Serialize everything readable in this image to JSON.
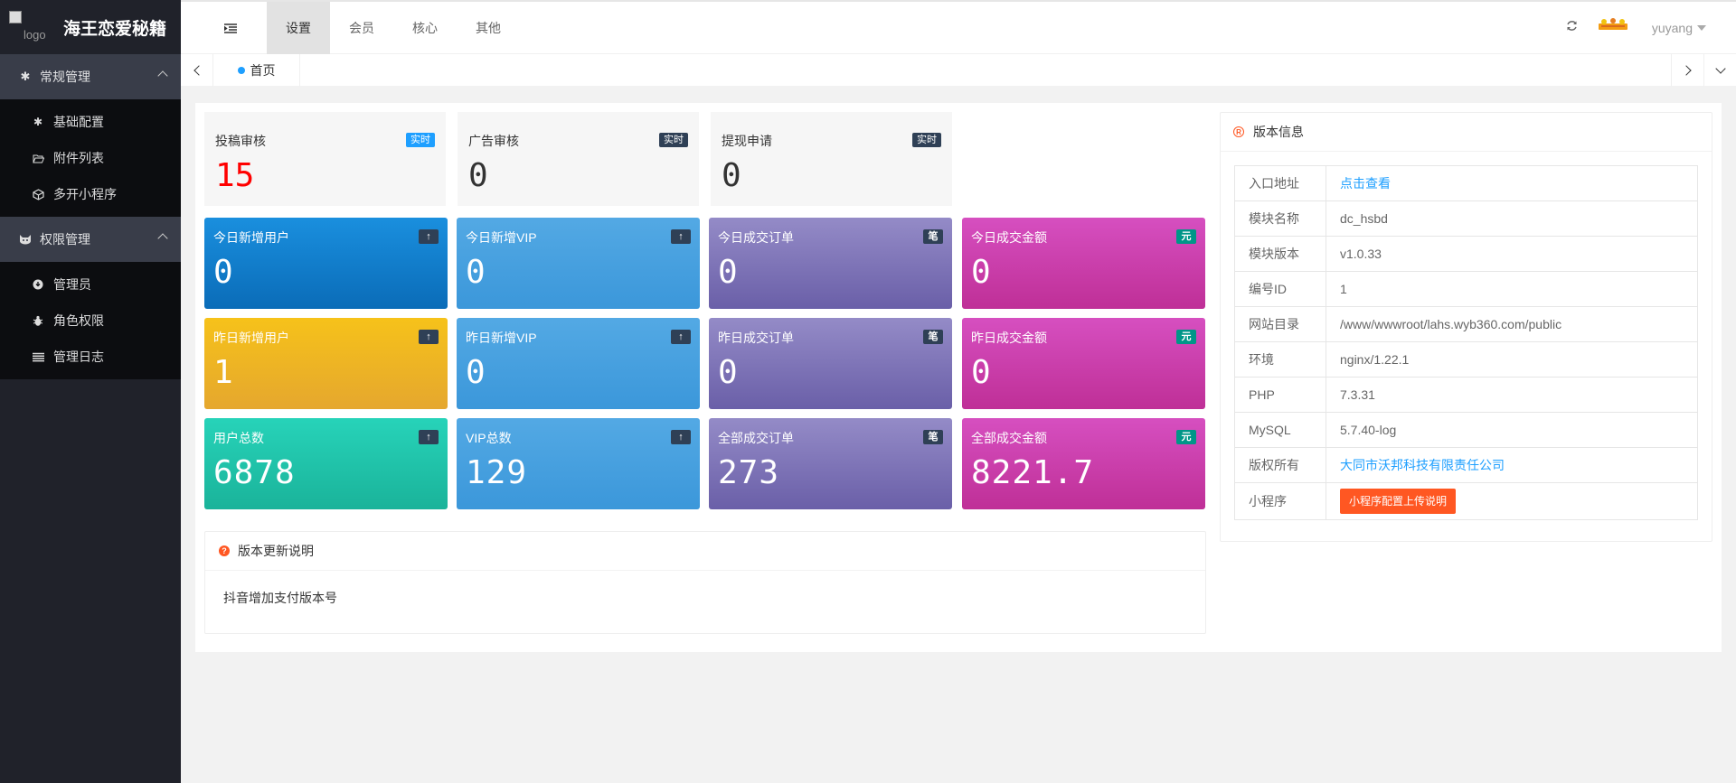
{
  "app": {
    "logo_alt": "logo",
    "title": "海王恋爱秘籍"
  },
  "header": {
    "tabs": [
      {
        "label": "设置",
        "active": true
      },
      {
        "label": "会员",
        "active": false
      },
      {
        "label": "核心",
        "active": false
      },
      {
        "label": "其他",
        "active": false
      }
    ],
    "user": "yuyang"
  },
  "sidebar": {
    "groups": [
      {
        "label": "常规管理",
        "icon": "gear-icon",
        "items": [
          {
            "label": "基础配置",
            "icon": "gear-icon"
          },
          {
            "label": "附件列表",
            "icon": "folder-open-icon"
          },
          {
            "label": "多开小程序",
            "icon": "cube-icon"
          }
        ]
      },
      {
        "label": "权限管理",
        "icon": "cat-icon",
        "items": [
          {
            "label": "管理员",
            "icon": "download-circle-icon"
          },
          {
            "label": "角色权限",
            "icon": "bug-icon"
          },
          {
            "label": "管理日志",
            "icon": "list-icon"
          }
        ]
      }
    ]
  },
  "page_tabs": {
    "home": "首页"
  },
  "review_stats": [
    {
      "label": "投稿审核",
      "tag": "实时",
      "value": "15",
      "value_color": "#ff0000",
      "tag_color": "#1e9fff"
    },
    {
      "label": "广告审核",
      "tag": "实时",
      "value": "0",
      "value_color": "#333333",
      "tag_color": "#2f4056"
    },
    {
      "label": "提现申请",
      "tag": "实时",
      "value": "0",
      "value_color": "#333333",
      "tag_color": "#2f4056"
    }
  ],
  "cards": [
    {
      "label": "今日新增用户",
      "tag": "↑",
      "value": "0"
    },
    {
      "label": "今日新增VIP",
      "tag": "↑",
      "value": "0"
    },
    {
      "label": "今日成交订单",
      "tag": "笔",
      "value": "0"
    },
    {
      "label": "今日成交金额",
      "tag": "元",
      "value": "0"
    },
    {
      "label": "昨日新增用户",
      "tag": "↑",
      "value": "1"
    },
    {
      "label": "昨日新增VIP",
      "tag": "↑",
      "value": "0"
    },
    {
      "label": "昨日成交订单",
      "tag": "笔",
      "value": "0"
    },
    {
      "label": "昨日成交金额",
      "tag": "元",
      "value": "0"
    },
    {
      "label": "用户总数",
      "tag": "↑",
      "value": "6878"
    },
    {
      "label": "VIP总数",
      "tag": "↑",
      "value": "129"
    },
    {
      "label": "全部成交订单",
      "tag": "笔",
      "value": "273"
    },
    {
      "label": "全部成交金额",
      "tag": "元",
      "value": "8221.7"
    }
  ],
  "notes": {
    "title": "版本更新说明",
    "content": "抖音增加支付版本号"
  },
  "version_info": {
    "title": "版本信息",
    "rows": [
      {
        "key": "入口地址",
        "value": "点击查看"
      },
      {
        "key": "模块名称",
        "value": "dc_hsbd"
      },
      {
        "key": "模块版本",
        "value": "v1.0.33"
      },
      {
        "key": "编号ID",
        "value": "1"
      },
      {
        "key": "网站目录",
        "value": "/www/wwwroot/lahs.wyb360.com/public"
      },
      {
        "key": "环境",
        "value": "nginx/1.22.1"
      },
      {
        "key": "PHP",
        "value": "7.3.31"
      },
      {
        "key": "MySQL",
        "value": "5.7.40-log"
      },
      {
        "key": "版权所有",
        "value": "大同市沃邦科技有限责任公司"
      },
      {
        "key": "小程序",
        "value": "小程序配置上传说明"
      }
    ]
  },
  "colors": {
    "accent": "#1e9fff",
    "danger": "#ff5722",
    "sidebar_bg": "#20222a",
    "sidebar_group_bg": "#393d49"
  }
}
